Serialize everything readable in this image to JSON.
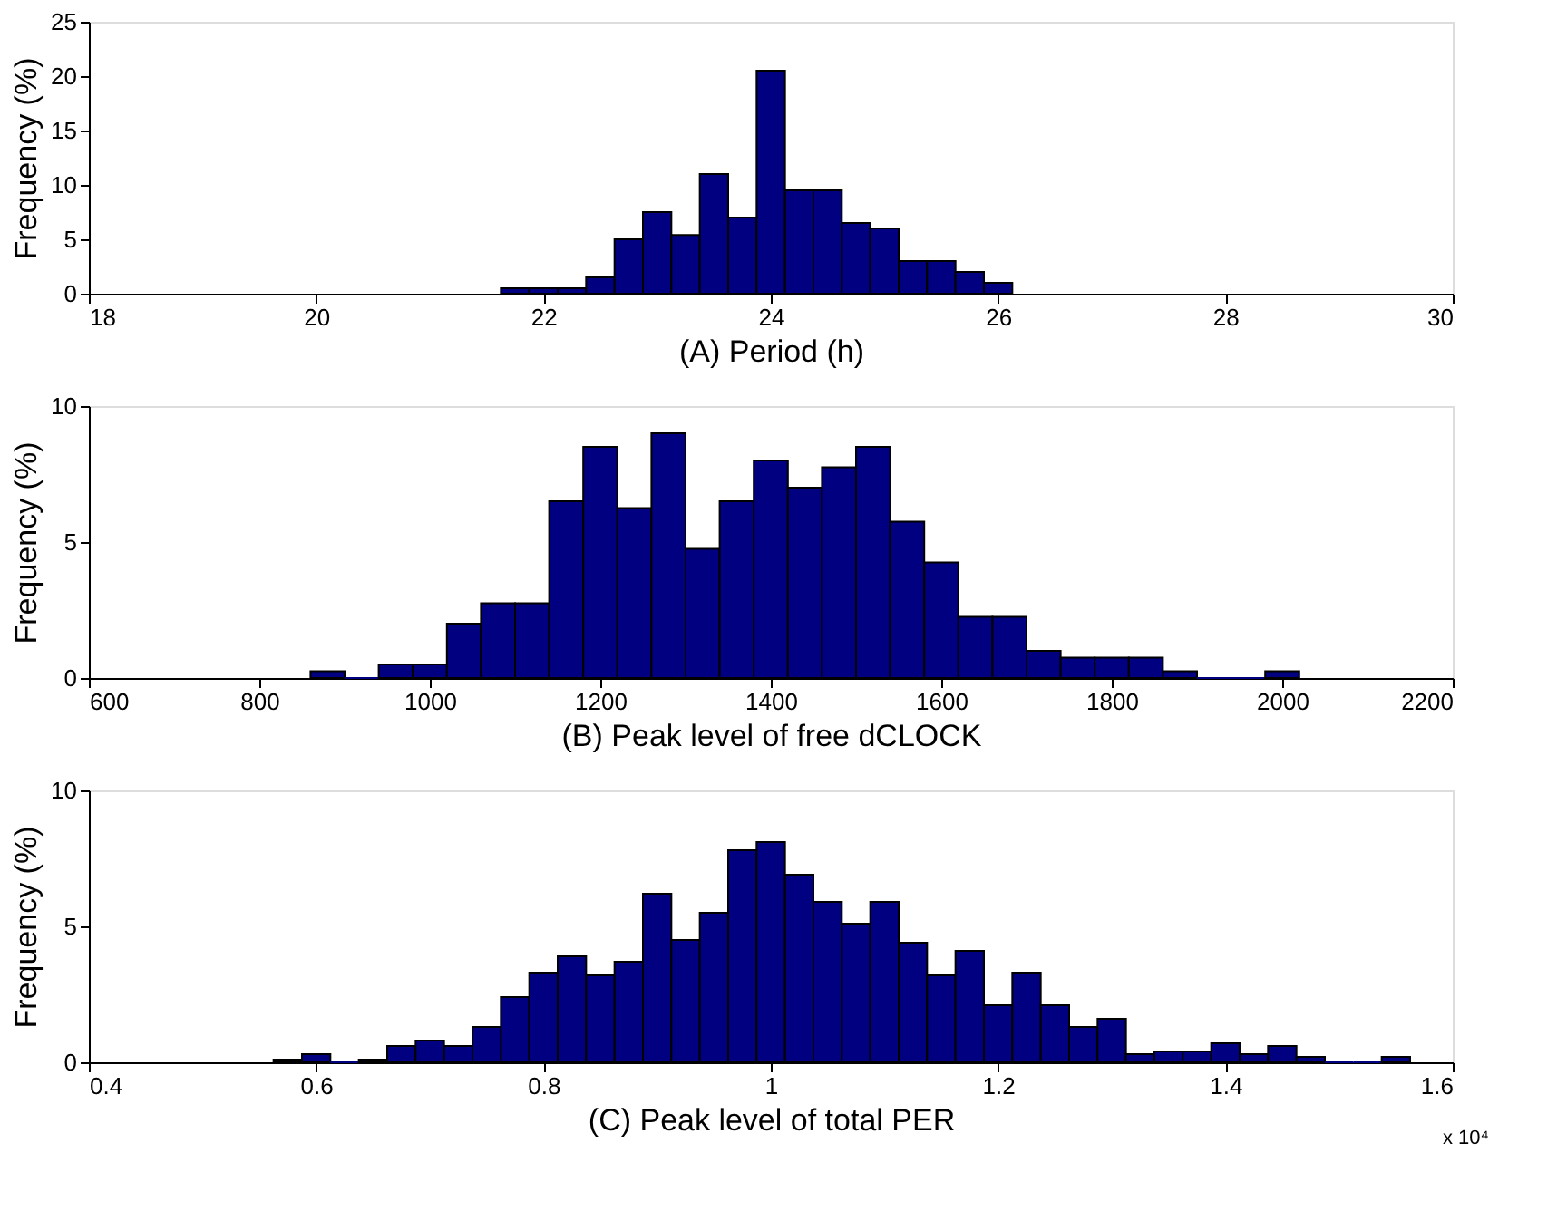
{
  "chart_data": [
    {
      "type": "histogram",
      "xlabel": "(A) Period (h)",
      "ylabel": "Frequency (%)",
      "color": "#000080",
      "xlim": [
        18,
        30
      ],
      "xticks": [
        18,
        20,
        22,
        24,
        26,
        28,
        30
      ],
      "ylim": [
        0,
        25
      ],
      "yticks": [
        0,
        5,
        10,
        15,
        20,
        25
      ],
      "bins": [
        21.625,
        21.875,
        22.125,
        22.375,
        22.625,
        22.875,
        23.125,
        23.375,
        23.625,
        23.875,
        24.125,
        24.375,
        24.625,
        24.875,
        25.125,
        25.375,
        25.625,
        25.875,
        26.125
      ],
      "values": [
        0.5,
        0.5,
        0.5,
        1.5,
        5.0,
        7.5,
        5.4,
        11.0,
        7.0,
        20.5,
        9.5,
        9.5,
        6.5,
        6.0,
        3.0,
        3.0,
        2.0,
        1.0
      ]
    },
    {
      "type": "histogram",
      "xlabel": "(B) Peak level of free dCLOCK",
      "ylabel": "Frequency (%)",
      "color": "#000080",
      "xlim": [
        600,
        2200
      ],
      "xticks": [
        600,
        800,
        1000,
        1200,
        1400,
        1600,
        1800,
        2000,
        2200
      ],
      "ylim": [
        0,
        10
      ],
      "yticks": [
        0,
        5,
        10
      ],
      "bins": [
        860,
        900,
        940,
        980,
        1020,
        1060,
        1100,
        1140,
        1180,
        1220,
        1260,
        1300,
        1340,
        1380,
        1420,
        1460,
        1500,
        1540,
        1580,
        1620,
        1660,
        1700,
        1740,
        1780,
        1820,
        1860,
        1900,
        1940,
        1980,
        2020
      ],
      "values": [
        0.25,
        0,
        0.5,
        0.5,
        2.0,
        2.75,
        2.75,
        6.5,
        8.5,
        6.25,
        9.0,
        4.75,
        6.5,
        8.0,
        7.0,
        7.75,
        8.5,
        5.75,
        4.25,
        2.25,
        2.25,
        1.0,
        0.75,
        0.75,
        0.75,
        0.25,
        0,
        0,
        0.25
      ]
    },
    {
      "type": "histogram",
      "xlabel": "(C) Peak level of total PER",
      "ylabel": "Frequency (%)",
      "color": "#000080",
      "xlim": [
        0.4,
        1.6
      ],
      "xticks": [
        0.4,
        0.6,
        0.8,
        1,
        1.2,
        1.4,
        1.6
      ],
      "ylim": [
        0,
        10
      ],
      "yticks": [
        0,
        5,
        10
      ],
      "annotations": [
        "x 10⁴"
      ],
      "bins": [
        0.5625,
        0.5875,
        0.6125,
        0.6375,
        0.6625,
        0.6875,
        0.7125,
        0.7375,
        0.7625,
        0.7875,
        0.8125,
        0.8375,
        0.8625,
        0.8875,
        0.9125,
        0.9375,
        0.9625,
        0.9875,
        1.0125,
        1.0375,
        1.0625,
        1.0875,
        1.1125,
        1.1375,
        1.1625,
        1.1875,
        1.2125,
        1.2375,
        1.2625,
        1.2875,
        1.3125,
        1.3375,
        1.3625,
        1.3875,
        1.4125,
        1.4375,
        1.4625,
        1.4875,
        1.5125,
        1.5375,
        1.5625
      ],
      "values": [
        0.1,
        0.3,
        0,
        0.1,
        0.6,
        0.8,
        0.6,
        1.3,
        2.4,
        3.3,
        3.9,
        3.2,
        3.7,
        6.2,
        4.5,
        5.5,
        7.8,
        8.1,
        6.9,
        5.9,
        5.1,
        5.9,
        4.4,
        3.2,
        4.1,
        2.1,
        3.3,
        2.1,
        1.3,
        1.6,
        0.3,
        0.4,
        0.4,
        0.7,
        0.3,
        0.6,
        0.2,
        0,
        0,
        0.2
      ]
    }
  ]
}
